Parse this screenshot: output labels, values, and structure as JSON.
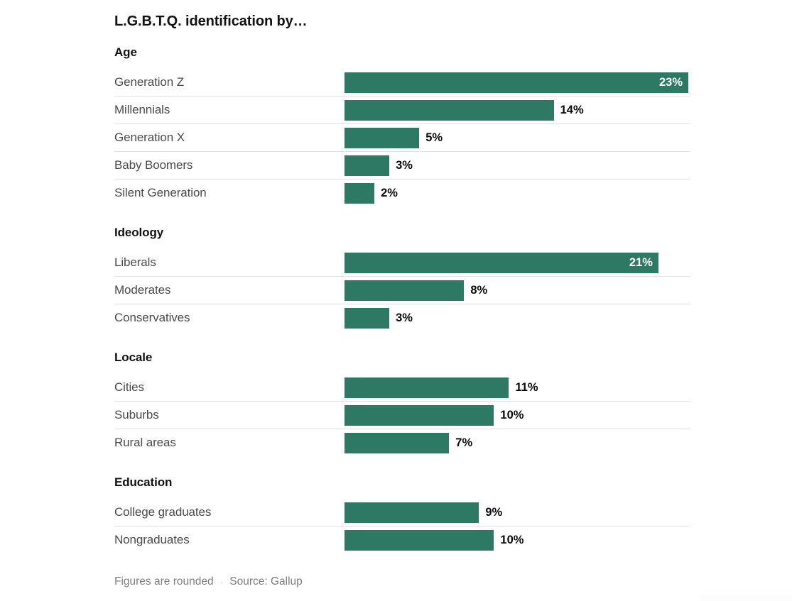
{
  "chart_data": {
    "type": "bar",
    "orientation": "horizontal",
    "title": "L.G.B.T.Q. identification by…",
    "value_unit": "%",
    "xlim": [
      0,
      23
    ],
    "grid": false,
    "legend": false,
    "sections": [
      {
        "label": "Age",
        "categories": [
          "Generation Z",
          "Millennials",
          "Generation X",
          "Baby Boomers",
          "Silent Generation"
        ],
        "values": [
          23,
          14,
          5,
          3,
          2
        ],
        "display": [
          "23%",
          "14%",
          "5%",
          "3%",
          "2%"
        ],
        "inside_label": [
          true,
          false,
          false,
          false,
          false
        ]
      },
      {
        "label": "Ideology",
        "categories": [
          "Liberals",
          "Moderates",
          "Conservatives"
        ],
        "values": [
          21,
          8,
          3
        ],
        "display": [
          "21%",
          "8%",
          "3%"
        ],
        "inside_label": [
          true,
          false,
          false
        ]
      },
      {
        "label": "Locale",
        "categories": [
          "Cities",
          "Suburbs",
          "Rural areas"
        ],
        "values": [
          11,
          10,
          7
        ],
        "display": [
          "11%",
          "10%",
          "7%"
        ],
        "inside_label": [
          false,
          false,
          false
        ]
      },
      {
        "label": "Education",
        "categories": [
          "College graduates",
          "Nongraduates"
        ],
        "values": [
          9,
          10
        ],
        "display": [
          "9%",
          "10%"
        ],
        "inside_label": [
          false,
          false
        ]
      }
    ],
    "footnote": {
      "note": "Figures are rounded",
      "separator": "·",
      "source": "Source: Gallup"
    }
  },
  "colors": {
    "bar": "#2e7964",
    "heading": "#121212",
    "category_label": "#4b4b4b",
    "value_label": "#0a0a0a",
    "value_label_inside": "#ffffff",
    "divider": "#e2e2e2",
    "footnote": "#7e7e7e",
    "footnote_dot": "#c9c9c9",
    "background": "#ffffff",
    "artifact": "#fcfcfc"
  }
}
